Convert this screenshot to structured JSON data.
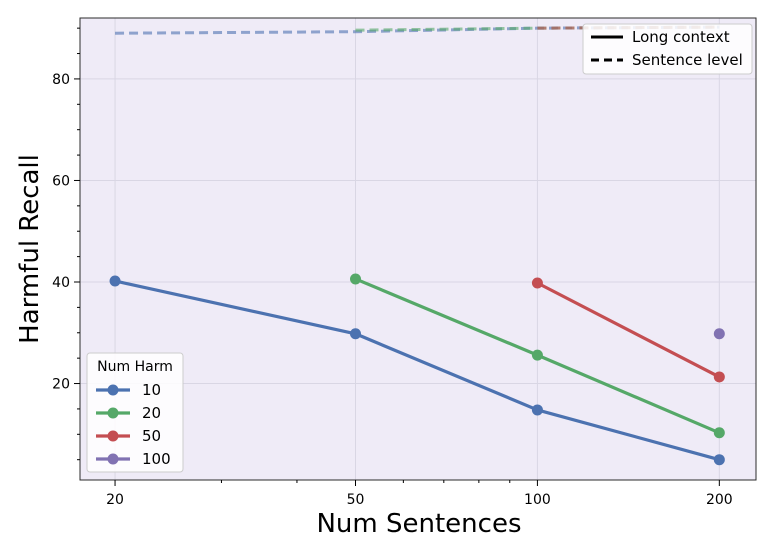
{
  "chart_data": {
    "type": "line",
    "xlabel": "Num Sentences",
    "ylabel": "Harmful Recall",
    "x_scale": "log",
    "xlim": [
      17.5,
      230
    ],
    "ylim": [
      1,
      92
    ],
    "xticks": [
      20,
      50,
      100,
      200
    ],
    "xtick_labels": [
      "20",
      "50",
      "100",
      "200"
    ],
    "yticks": [
      20,
      40,
      60,
      80
    ],
    "ytick_labels": [
      "20",
      "40",
      "60",
      "80"
    ],
    "grid": true,
    "background": "#efebf7",
    "series": [
      {
        "name": "10",
        "color": "#4c72b0",
        "long_context": {
          "x": [
            20,
            50,
            100,
            200
          ],
          "y": [
            40.2,
            29.8,
            14.8,
            5.0
          ]
        },
        "sentence_level": {
          "x": [
            20,
            50,
            100,
            200
          ],
          "y": [
            89.0,
            89.3,
            90.0,
            90.2
          ]
        }
      },
      {
        "name": "20",
        "color": "#55a868",
        "long_context": {
          "x": [
            50,
            100,
            200
          ],
          "y": [
            40.6,
            25.6,
            10.3
          ]
        },
        "sentence_level": {
          "x": [
            50,
            100,
            200
          ],
          "y": [
            89.6,
            90.0,
            90.2
          ]
        }
      },
      {
        "name": "50",
        "color": "#c44e52",
        "long_context": {
          "x": [
            100,
            200
          ],
          "y": [
            39.8,
            21.3
          ]
        },
        "sentence_level": {
          "x": [
            100,
            200
          ],
          "y": [
            90.0,
            90.2
          ]
        }
      },
      {
        "name": "100",
        "color": "#8172b2",
        "long_context": {
          "x": [
            200
          ],
          "y": [
            29.8
          ]
        },
        "sentence_level": {
          "x": [
            200
          ],
          "y": [
            90.2
          ]
        }
      }
    ],
    "style_legend": {
      "placement": "top-right",
      "entries": [
        {
          "label": "Long context",
          "dash": "solid"
        },
        {
          "label": "Sentence level",
          "dash": "dashed"
        }
      ]
    },
    "series_legend": {
      "title": "Num Harm",
      "placement": "bottom-left"
    }
  }
}
